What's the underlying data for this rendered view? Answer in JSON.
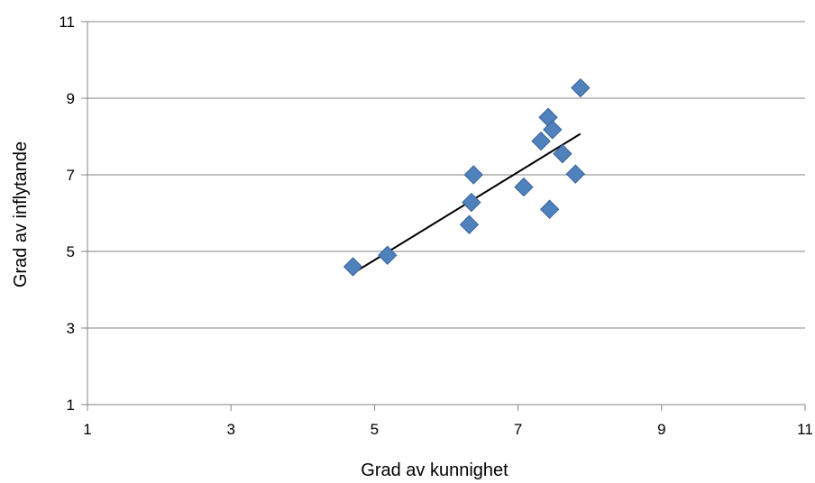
{
  "chart_data": {
    "type": "scatter",
    "title": "",
    "xlabel": "Grad av kunnighet",
    "ylabel": "Grad av inflytande",
    "xlim": [
      1,
      11
    ],
    "ylim": [
      1,
      11
    ],
    "xticks": [
      "1",
      "3",
      "5",
      "7",
      "9",
      "11"
    ],
    "yticks": [
      "1",
      "3",
      "5",
      "7",
      "9",
      "11"
    ],
    "grid": "horizontal",
    "legend": "none",
    "series": [
      {
        "marker": "diamond",
        "color": "#4F81BD",
        "points": [
          {
            "x": 4.7,
            "y": 4.6
          },
          {
            "x": 5.18,
            "y": 4.9
          },
          {
            "x": 6.32,
            "y": 5.7
          },
          {
            "x": 6.35,
            "y": 6.28
          },
          {
            "x": 6.38,
            "y": 7.0
          },
          {
            "x": 7.08,
            "y": 6.68
          },
          {
            "x": 7.32,
            "y": 7.88
          },
          {
            "x": 7.42,
            "y": 8.5
          },
          {
            "x": 7.48,
            "y": 8.18
          },
          {
            "x": 7.44,
            "y": 6.1
          },
          {
            "x": 7.62,
            "y": 7.55
          },
          {
            "x": 7.8,
            "y": 7.02
          },
          {
            "x": 7.87,
            "y": 9.27
          }
        ]
      }
    ],
    "trendline": {
      "type": "linear",
      "x_from": 4.7,
      "x_to": 7.87,
      "y_from": 4.43,
      "y_to": 8.07,
      "color": "#000000"
    }
  }
}
